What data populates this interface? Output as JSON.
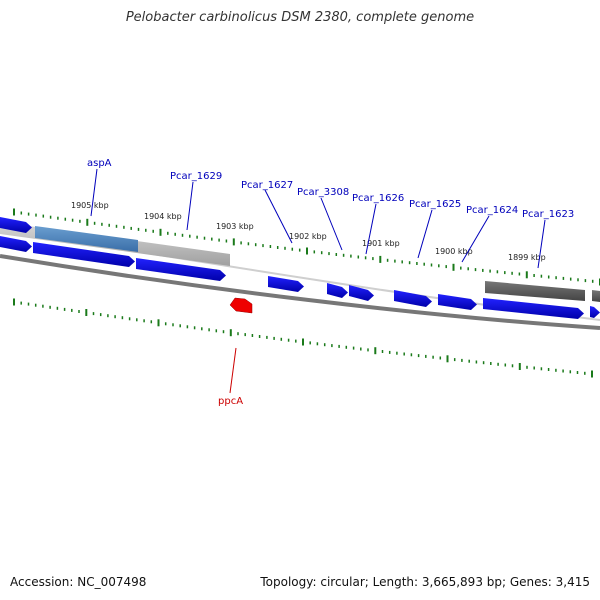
{
  "title": "Pelobacter carbinolicus DSM 2380, complete genome",
  "footer": {
    "accession": "Accession: NC_007498",
    "summary": "Topology: circular; Length: 3,665,893 bp; Genes: 3,415"
  },
  "colors": {
    "gene_forward": "#0000ee",
    "gene_highlight": "#ff0000",
    "tick": "#1a7a1a",
    "label": "#0000bb",
    "label_highlight": "#cc0000"
  },
  "scale_labels": [
    "1905 kbp",
    "1904 kbp",
    "1903 kbp",
    "1902 kbp",
    "1901 kbp",
    "1900 kbp",
    "1899 kbp"
  ],
  "gene_labels": [
    "aspA",
    "Pcar_1629",
    "Pcar_1627",
    "Pcar_3308",
    "Pcar_1626",
    "Pcar_1625",
    "Pcar_1624",
    "Pcar_1623"
  ],
  "highlight_label": "ppcA"
}
